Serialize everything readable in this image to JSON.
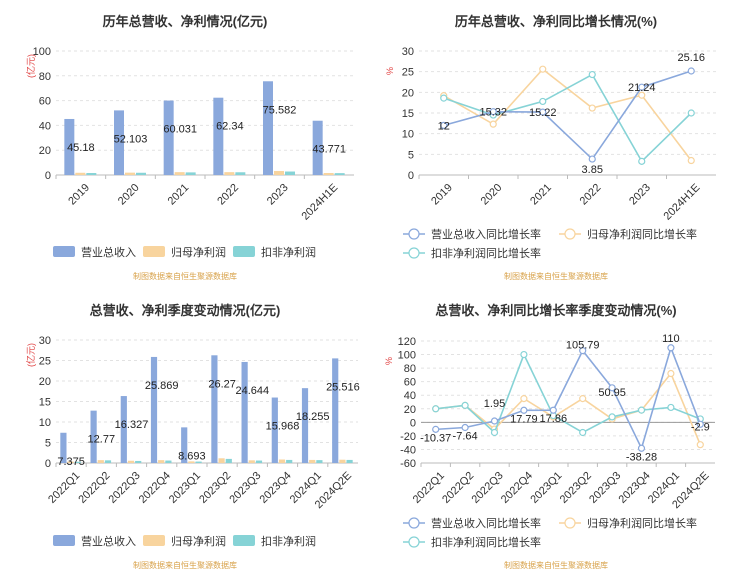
{
  "source_note": "制图数据来自恒生聚源数据库",
  "colors": {
    "revenue": "#8aa8dc",
    "netprofit": "#f8d49e",
    "deducted": "#86d3d6",
    "grid": "#e2e2e2",
    "axis": "#666666",
    "unit_red": "#e04040",
    "note": "#d8a24a"
  },
  "chart_data": [
    {
      "type": "bar",
      "title": "历年总营收、净利情况(亿元)",
      "ylabel": "(亿元)",
      "ylim": [
        0,
        100
      ],
      "yticks": [
        "0",
        "20",
        "40",
        "60",
        "80",
        "100"
      ],
      "categories": [
        "2019",
        "2020",
        "2021",
        "2022",
        "2023",
        "2024H1E"
      ],
      "series": [
        {
          "name": "营业总收入",
          "values": [
            45.18,
            52.103,
            60.031,
            62.34,
            75.582,
            43.771
          ]
        },
        {
          "name": "归母净利润",
          "values": [
            1.8,
            1.9,
            2.3,
            2.3,
            3.2,
            1.6
          ]
        },
        {
          "name": "扣非净利润",
          "values": [
            1.6,
            1.8,
            2.1,
            2.2,
            2.8,
            1.5
          ]
        }
      ],
      "data_labels": [
        "45.18",
        "52.103",
        "60.031",
        "62.34",
        "75.582",
        "43.771"
      ],
      "legend": "bottom"
    },
    {
      "type": "line",
      "title": "历年总营收、净利同比增长情况(%)",
      "ylabel": "%",
      "ylim": [
        0,
        30
      ],
      "yticks": [
        "0",
        "5",
        "10",
        "15",
        "20",
        "25",
        "30"
      ],
      "categories": [
        "2019",
        "2020",
        "2021",
        "2022",
        "2023",
        "2024H1E"
      ],
      "series": [
        {
          "name": "营业总收入同比增长率",
          "values": [
            12,
            15.32,
            15.22,
            3.85,
            21.24,
            25.16
          ]
        },
        {
          "name": "归母净利润同比增长率",
          "values": [
            19.2,
            12.3,
            25.6,
            16.2,
            19.3,
            3.5
          ]
        },
        {
          "name": "扣非净利润同比增长率",
          "values": [
            18.6,
            14.5,
            17.8,
            24.3,
            3.3,
            15.0
          ]
        }
      ],
      "data_labels": [
        "12",
        "15.32",
        "15.22",
        "3.85",
        "21.24",
        "25.16"
      ],
      "legend": "bottom"
    },
    {
      "type": "bar",
      "title": "总营收、净利季度变动情况(亿元)",
      "ylabel": "(亿元)",
      "ylim": [
        0,
        30
      ],
      "yticks": [
        "0",
        "5",
        "10",
        "15",
        "20",
        "25",
        "30"
      ],
      "categories": [
        "2022Q1",
        "2022Q2",
        "2022Q3",
        "2022Q4",
        "2023Q1",
        "2023Q2",
        "2023Q3",
        "2023Q4",
        "2024Q1",
        "2024Q2E"
      ],
      "series": [
        {
          "name": "营业总收入",
          "values": [
            7.375,
            12.77,
            16.327,
            25.869,
            8.693,
            26.27,
            24.644,
            15.968,
            18.255,
            25.516
          ]
        },
        {
          "name": "归母净利润",
          "values": [
            0.35,
            0.7,
            0.55,
            0.7,
            0.4,
            1.15,
            0.65,
            0.85,
            0.75,
            0.8
          ]
        },
        {
          "name": "扣非净利润",
          "values": [
            0.3,
            0.65,
            0.5,
            0.6,
            0.35,
            1.0,
            0.6,
            0.75,
            0.7,
            0.75
          ]
        }
      ],
      "data_labels": [
        "7.375",
        "12.77",
        "16.327",
        "25.869",
        "8.693",
        "26.27",
        "24.644",
        "15.968",
        "18.255",
        "25.516"
      ],
      "legend": "bottom"
    },
    {
      "type": "line",
      "title": "总营收、净利同比增长率季度变动情况(%)",
      "ylabel": "%",
      "ylim": [
        -60,
        120
      ],
      "yticks": [
        "-60",
        "-40",
        "-20",
        "0",
        "20",
        "40",
        "60",
        "80",
        "100",
        "120"
      ],
      "categories": [
        "2022Q1",
        "2022Q2",
        "2022Q3",
        "2022Q4",
        "2023Q1",
        "2023Q2",
        "2023Q3",
        "2023Q4",
        "2024Q1",
        "2024Q2E"
      ],
      "series": [
        {
          "name": "营业总收入同比增长率",
          "values": [
            -10.37,
            -7.64,
            1.95,
            17.79,
            17.86,
            105.79,
            50.95,
            -38.28,
            110,
            -2.9
          ]
        },
        {
          "name": "归母净利润同比增长率",
          "values": [
            20,
            25,
            -10,
            35,
            8,
            35,
            5,
            18,
            72,
            -33
          ]
        },
        {
          "name": "扣非净利润同比增长率",
          "values": [
            20,
            25,
            -15,
            100,
            10,
            -15,
            8,
            18,
            22,
            5
          ]
        }
      ],
      "data_labels": [
        "-10.37",
        "-7.64",
        "1.95",
        "17.79",
        "17.86",
        "105.79",
        "50.95",
        "-38.28",
        "110",
        "-2.9"
      ],
      "legend": "bottom"
    }
  ]
}
